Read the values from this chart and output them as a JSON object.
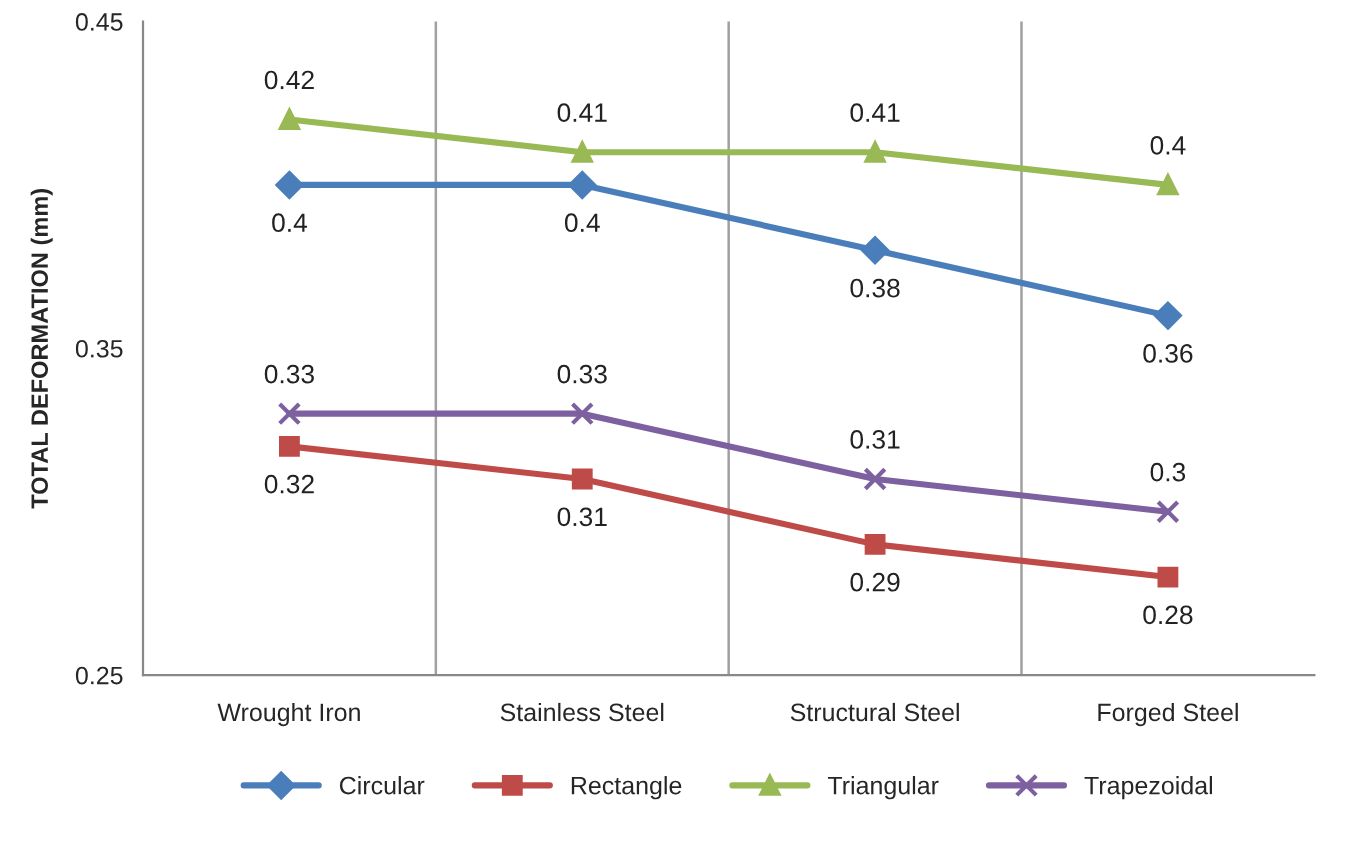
{
  "chart_data": {
    "type": "line",
    "ylabel": "TOTAL DEFORMATION (mm)",
    "categories": [
      "Wrought Iron",
      "Stainless Steel",
      "Structural Steel",
      "Forged Steel"
    ],
    "series": [
      {
        "name": "Circular",
        "color": "#4a7ebb",
        "marker": "diamond",
        "values": [
          0.4,
          0.4,
          0.38,
          0.36
        ]
      },
      {
        "name": "Rectangle",
        "color": "#be4b48",
        "marker": "square",
        "values": [
          0.32,
          0.31,
          0.29,
          0.28
        ]
      },
      {
        "name": "Triangular",
        "color": "#98b954",
        "marker": "triangle",
        "values": [
          0.42,
          0.41,
          0.41,
          0.4
        ]
      },
      {
        "name": "Trapezoidal",
        "color": "#7d60a0",
        "marker": "cross",
        "values": [
          0.33,
          0.33,
          0.31,
          0.3
        ]
      }
    ],
    "ylim": [
      0.25,
      0.45
    ],
    "yticks": [
      0.25,
      0.35,
      0.45
    ],
    "grid": "x",
    "legend": "bottom",
    "data_labels": true,
    "line_style": "solid"
  }
}
